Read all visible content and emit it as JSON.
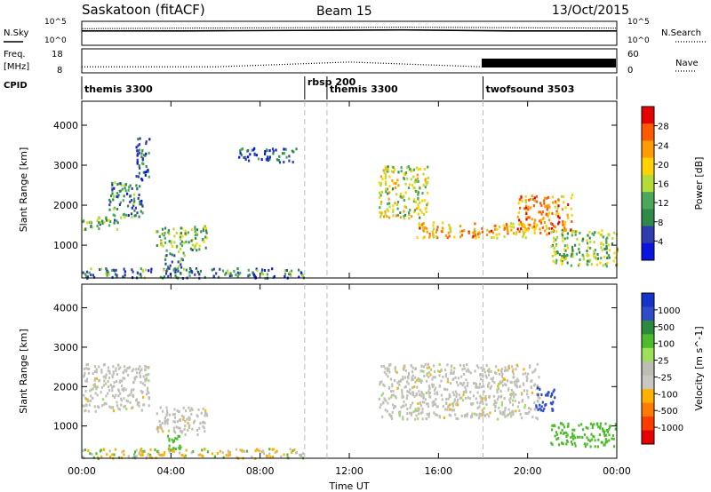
{
  "header": {
    "station": "Saskatoon (fitACF)",
    "beam": "Beam 15",
    "date": "13/Oct/2015"
  },
  "panel_labels": {
    "nsky": "N.Sky",
    "nsearch": "N.Search",
    "freq_line1": "Freq.",
    "freq_line2": "[MHz]",
    "nave": "Nave",
    "cpid": "CPID"
  },
  "noise_axis": {
    "left_top": "10^5",
    "left_bottom": "10^0",
    "right_top": "10^5",
    "right_bottom": "10^0"
  },
  "freq_axis": {
    "left_top": "18",
    "left_bottom": "8",
    "right_top": "60",
    "right_bottom": "0"
  },
  "cpid_segments": [
    {
      "label": "themis 3300",
      "start_hour": 0
    },
    {
      "label": "rbsp 200",
      "start_hour": 10
    },
    {
      "label": "themis 3300",
      "start_hour": 11
    },
    {
      "label": "twofsound 3503",
      "start_hour": 18
    }
  ],
  "colors": {
    "power": [
      "#0a14e0",
      "#2f3cb0",
      "#2f8a4a",
      "#4aa85a",
      "#b4dc38",
      "#ffd200",
      "#ff9a00",
      "#ff5a00",
      "#e60000"
    ],
    "velocity": [
      "#1433c8",
      "#2f4cc8",
      "#2c8a3a",
      "#4cbc2c",
      "#9ee05a",
      "#bdbdb5",
      "#c8c8c0",
      "#ffb000",
      "#ff7a00",
      "#ff3c00",
      "#e60000"
    ],
    "ground_scatter": "#c0c0b8"
  },
  "chart_data": [
    {
      "type": "heatmap",
      "name": "power",
      "xlabel": "",
      "ylabel": "Slant Range [km]",
      "ylim": [
        180,
        4600
      ],
      "y_ticks": [
        "1000",
        "2000",
        "3000",
        "4000"
      ],
      "colorbar_label": "Power [dB]",
      "colorbar_ticks": [
        "4",
        "8",
        "12",
        "16",
        "20",
        "24",
        "28"
      ],
      "colorbar_range": [
        0,
        32
      ],
      "regions": [
        {
          "x": [
            0.0,
            1.6
          ],
          "y": [
            1400,
            1750
          ],
          "value": 12
        },
        {
          "x": [
            1.2,
            2.7
          ],
          "y": [
            1700,
            2600
          ],
          "value": 10
        },
        {
          "x": [
            2.4,
            3.0
          ],
          "y": [
            2500,
            3700
          ],
          "value": 6
        },
        {
          "x": [
            3.3,
            5.6
          ],
          "y": [
            900,
            1500
          ],
          "value": 14
        },
        {
          "x": [
            3.7,
            4.6
          ],
          "y": [
            350,
            900
          ],
          "value": 10
        },
        {
          "x": [
            0.0,
            10.0
          ],
          "y": [
            200,
            450
          ],
          "value": 9
        },
        {
          "x": [
            7.0,
            9.6
          ],
          "y": [
            3100,
            3450
          ],
          "value": 6
        },
        {
          "x": [
            13.3,
            15.5
          ],
          "y": [
            1700,
            3000
          ],
          "value": 17
        },
        {
          "x": [
            15.0,
            20.0
          ],
          "y": [
            1200,
            1600
          ],
          "value": 22
        },
        {
          "x": [
            19.5,
            22.0
          ],
          "y": [
            1300,
            2300
          ],
          "value": 24
        },
        {
          "x": [
            21.0,
            24.0
          ],
          "y": [
            500,
            1400
          ],
          "value": 14
        }
      ]
    },
    {
      "type": "heatmap",
      "name": "velocity",
      "xlabel": "Time UT",
      "ylabel": "Slant Range [km]",
      "ylim": [
        180,
        4600
      ],
      "y_ticks": [
        "1000",
        "2000",
        "3000",
        "4000"
      ],
      "x_ticks": [
        "00:00",
        "04:00",
        "08:00",
        "12:00",
        "16:00",
        "20:00",
        "00:00"
      ],
      "colorbar_label": "Velocity [m s^-1]",
      "colorbar_ticks": [
        "1000",
        "500",
        "100",
        "25",
        "-25",
        "-100",
        "-500",
        "-1000"
      ],
      "regions": [
        {
          "x": [
            0.0,
            3.0
          ],
          "y": [
            1400,
            2600
          ],
          "value": 0
        },
        {
          "x": [
            3.3,
            5.6
          ],
          "y": [
            800,
            1500
          ],
          "value": 0
        },
        {
          "x": [
            3.8,
            4.4
          ],
          "y": [
            400,
            800
          ],
          "value": 150
        },
        {
          "x": [
            0.0,
            10.0
          ],
          "y": [
            200,
            450
          ],
          "value": -50
        },
        {
          "x": [
            13.3,
            20.5
          ],
          "y": [
            1200,
            2600
          ],
          "value": 0
        },
        {
          "x": [
            20.3,
            21.2
          ],
          "y": [
            1400,
            2000
          ],
          "value": 700
        },
        {
          "x": [
            21.0,
            24.0
          ],
          "y": [
            500,
            1100
          ],
          "value": 150
        }
      ]
    },
    {
      "type": "line",
      "name": "noise",
      "series": [
        {
          "name": "N.Sky",
          "values": [
            3.0,
            3.0,
            3.1,
            3.2,
            3.0,
            3.0
          ]
        },
        {
          "name": "N.Search",
          "values": [
            3.1,
            3.2,
            3.3,
            3.4,
            3.3,
            3.2
          ]
        }
      ]
    },
    {
      "type": "line",
      "name": "frequency",
      "series": [
        {
          "name": "Freq.",
          "values": [
            10.5,
            10.5,
            12.5,
            10.5,
            10.5
          ]
        },
        {
          "name": "Nave",
          "values": [
            22,
            22,
            22,
            22,
            40
          ]
        }
      ]
    }
  ]
}
